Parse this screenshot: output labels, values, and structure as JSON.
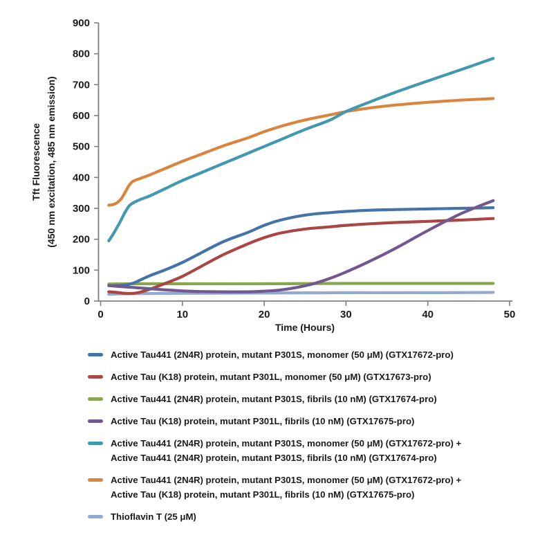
{
  "chart_data": {
    "type": "line",
    "title": "",
    "xlabel": "Time (Hours)",
    "ylabel_line1": "Tft Fluorescence",
    "ylabel_line2": "(450 nm excitation, 485 nm emission)",
    "xlim": [
      0,
      50
    ],
    "ylim": [
      0,
      900
    ],
    "x_ticks": [
      0,
      10,
      20,
      30,
      40,
      50
    ],
    "y_ticks": [
      0,
      100,
      200,
      300,
      400,
      500,
      600,
      700,
      800,
      900
    ],
    "grid": false,
    "legend_position": "bottom",
    "axis_color": "#7f7f7f",
    "text_color": "#1a1a1a",
    "draw_order": [
      6,
      2,
      1,
      0,
      5,
      3,
      4
    ],
    "series": [
      {
        "name": "Active Tau441 (2N4R) protein, mutant P301S, monomer (50 μM) (GTX17672-pro)",
        "name_lines": [
          "Active Tau441 (2N4R) protein, mutant P301S, monomer (50 μM) (GTX17672-pro)"
        ],
        "color": "#4572A7",
        "points": [
          [
            1,
            50
          ],
          [
            2,
            50
          ],
          [
            3,
            52
          ],
          [
            4,
            58
          ],
          [
            5,
            70
          ],
          [
            6,
            82
          ],
          [
            8,
            102
          ],
          [
            10,
            125
          ],
          [
            12,
            152
          ],
          [
            15,
            192
          ],
          [
            18,
            222
          ],
          [
            20,
            245
          ],
          [
            22,
            262
          ],
          [
            25,
            278
          ],
          [
            28,
            286
          ],
          [
            30,
            290
          ],
          [
            33,
            294
          ],
          [
            36,
            296
          ],
          [
            40,
            298
          ],
          [
            44,
            300
          ],
          [
            48,
            302
          ]
        ]
      },
      {
        "name": "Active Tau (K18) protein, mutant P301L, monomer (50 μM) (GTX17673-pro)",
        "name_lines": [
          "Active Tau (K18) protein, mutant P301L, monomer (50 μM) (GTX17673-pro)"
        ],
        "color": "#AA4643",
        "points": [
          [
            1,
            30
          ],
          [
            2,
            28
          ],
          [
            3,
            25
          ],
          [
            4,
            25
          ],
          [
            5,
            30
          ],
          [
            6,
            38
          ],
          [
            8,
            58
          ],
          [
            10,
            80
          ],
          [
            12,
            108
          ],
          [
            15,
            150
          ],
          [
            18,
            185
          ],
          [
            20,
            205
          ],
          [
            22,
            220
          ],
          [
            25,
            233
          ],
          [
            28,
            240
          ],
          [
            30,
            245
          ],
          [
            33,
            250
          ],
          [
            36,
            254
          ],
          [
            40,
            258
          ],
          [
            44,
            262
          ],
          [
            48,
            267
          ]
        ]
      },
      {
        "name": "Active Tau441 (2N4R) protein, mutant P301S, fibrils (10 nM) (GTX17674-pro)",
        "name_lines": [
          "Active Tau441 (2N4R) protein, mutant P301S, fibrils (10 nM) (GTX17674-pro)"
        ],
        "color": "#89A54E",
        "points": [
          [
            1,
            55
          ],
          [
            4,
            56
          ],
          [
            10,
            56
          ],
          [
            20,
            56
          ],
          [
            30,
            57
          ],
          [
            40,
            57
          ],
          [
            48,
            57
          ]
        ]
      },
      {
        "name": "Active Tau (K18) protein, mutant P301L, fibrils (10 nM) (GTX17675-pro)",
        "name_lines": [
          "Active Tau (K18) protein, mutant P301L, fibrils (10 nM) (GTX17675-pro)"
        ],
        "color": "#71588F",
        "points": [
          [
            1,
            50
          ],
          [
            2,
            48
          ],
          [
            3,
            46
          ],
          [
            4,
            44
          ],
          [
            6,
            40
          ],
          [
            8,
            36
          ],
          [
            10,
            33
          ],
          [
            12,
            31
          ],
          [
            15,
            30
          ],
          [
            18,
            30
          ],
          [
            20,
            32
          ],
          [
            22,
            36
          ],
          [
            24,
            44
          ],
          [
            26,
            56
          ],
          [
            28,
            73
          ],
          [
            30,
            94
          ],
          [
            33,
            130
          ],
          [
            36,
            170
          ],
          [
            40,
            228
          ],
          [
            44,
            282
          ],
          [
            48,
            325
          ]
        ]
      },
      {
        "name": "Active Tau441 (2N4R) protein, mutant P301S, monomer (50 μM) (GTX17672-pro) + Active Tau441 (2N4R) protein, mutant P301S, fibrils (10 nM) (GTX17674-pro)",
        "name_lines": [
          "Active Tau441 (2N4R) protein, mutant P301S, monomer (50 μM) (GTX17672-pro) +",
          "Active Tau441 (2N4R) protein, mutant P301S, fibrils (10 nM) (GTX17674-pro)"
        ],
        "color": "#4198AF",
        "points": [
          [
            1,
            195
          ],
          [
            1.5,
            215
          ],
          [
            2,
            238
          ],
          [
            2.5,
            262
          ],
          [
            3,
            288
          ],
          [
            3.5,
            308
          ],
          [
            4,
            318
          ],
          [
            5,
            330
          ],
          [
            6,
            340
          ],
          [
            8,
            365
          ],
          [
            10,
            390
          ],
          [
            12,
            412
          ],
          [
            15,
            445
          ],
          [
            18,
            478
          ],
          [
            20,
            500
          ],
          [
            22,
            522
          ],
          [
            25,
            555
          ],
          [
            28,
            585
          ],
          [
            30,
            613
          ],
          [
            33,
            645
          ],
          [
            36,
            675
          ],
          [
            40,
            712
          ],
          [
            44,
            748
          ],
          [
            48,
            785
          ]
        ]
      },
      {
        "name": "Active Tau441 (2N4R) protein, mutant P301S, monomer (50 μM) (GTX17672-pro) + Active Tau (K18) protein, mutant P301L, fibrils (10 nM) (GTX17675-pro)",
        "name_lines": [
          "Active Tau441 (2N4R) protein, mutant P301S, monomer (50 μM) (GTX17672-pro) +",
          "Active Tau (K18) protein, mutant P301L, fibrils (10 nM) (GTX17675-pro)"
        ],
        "color": "#DB843D",
        "points": [
          [
            1,
            310
          ],
          [
            1.5,
            312
          ],
          [
            2,
            318
          ],
          [
            2.5,
            330
          ],
          [
            3,
            352
          ],
          [
            3.5,
            375
          ],
          [
            4,
            388
          ],
          [
            5,
            398
          ],
          [
            6,
            408
          ],
          [
            8,
            430
          ],
          [
            10,
            452
          ],
          [
            12,
            472
          ],
          [
            15,
            502
          ],
          [
            18,
            528
          ],
          [
            20,
            548
          ],
          [
            22,
            565
          ],
          [
            25,
            586
          ],
          [
            28,
            602
          ],
          [
            30,
            613
          ],
          [
            33,
            625
          ],
          [
            36,
            634
          ],
          [
            40,
            643
          ],
          [
            44,
            650
          ],
          [
            48,
            655
          ]
        ]
      },
      {
        "name": "Thioflavin T (25 μM)",
        "name_lines": [
          "Thioflavin T (25 μM)"
        ],
        "color": "#93A9CF",
        "points": [
          [
            1,
            22
          ],
          [
            4,
            24
          ],
          [
            10,
            25
          ],
          [
            20,
            26
          ],
          [
            30,
            27
          ],
          [
            40,
            27
          ],
          [
            48,
            28
          ]
        ]
      }
    ]
  }
}
